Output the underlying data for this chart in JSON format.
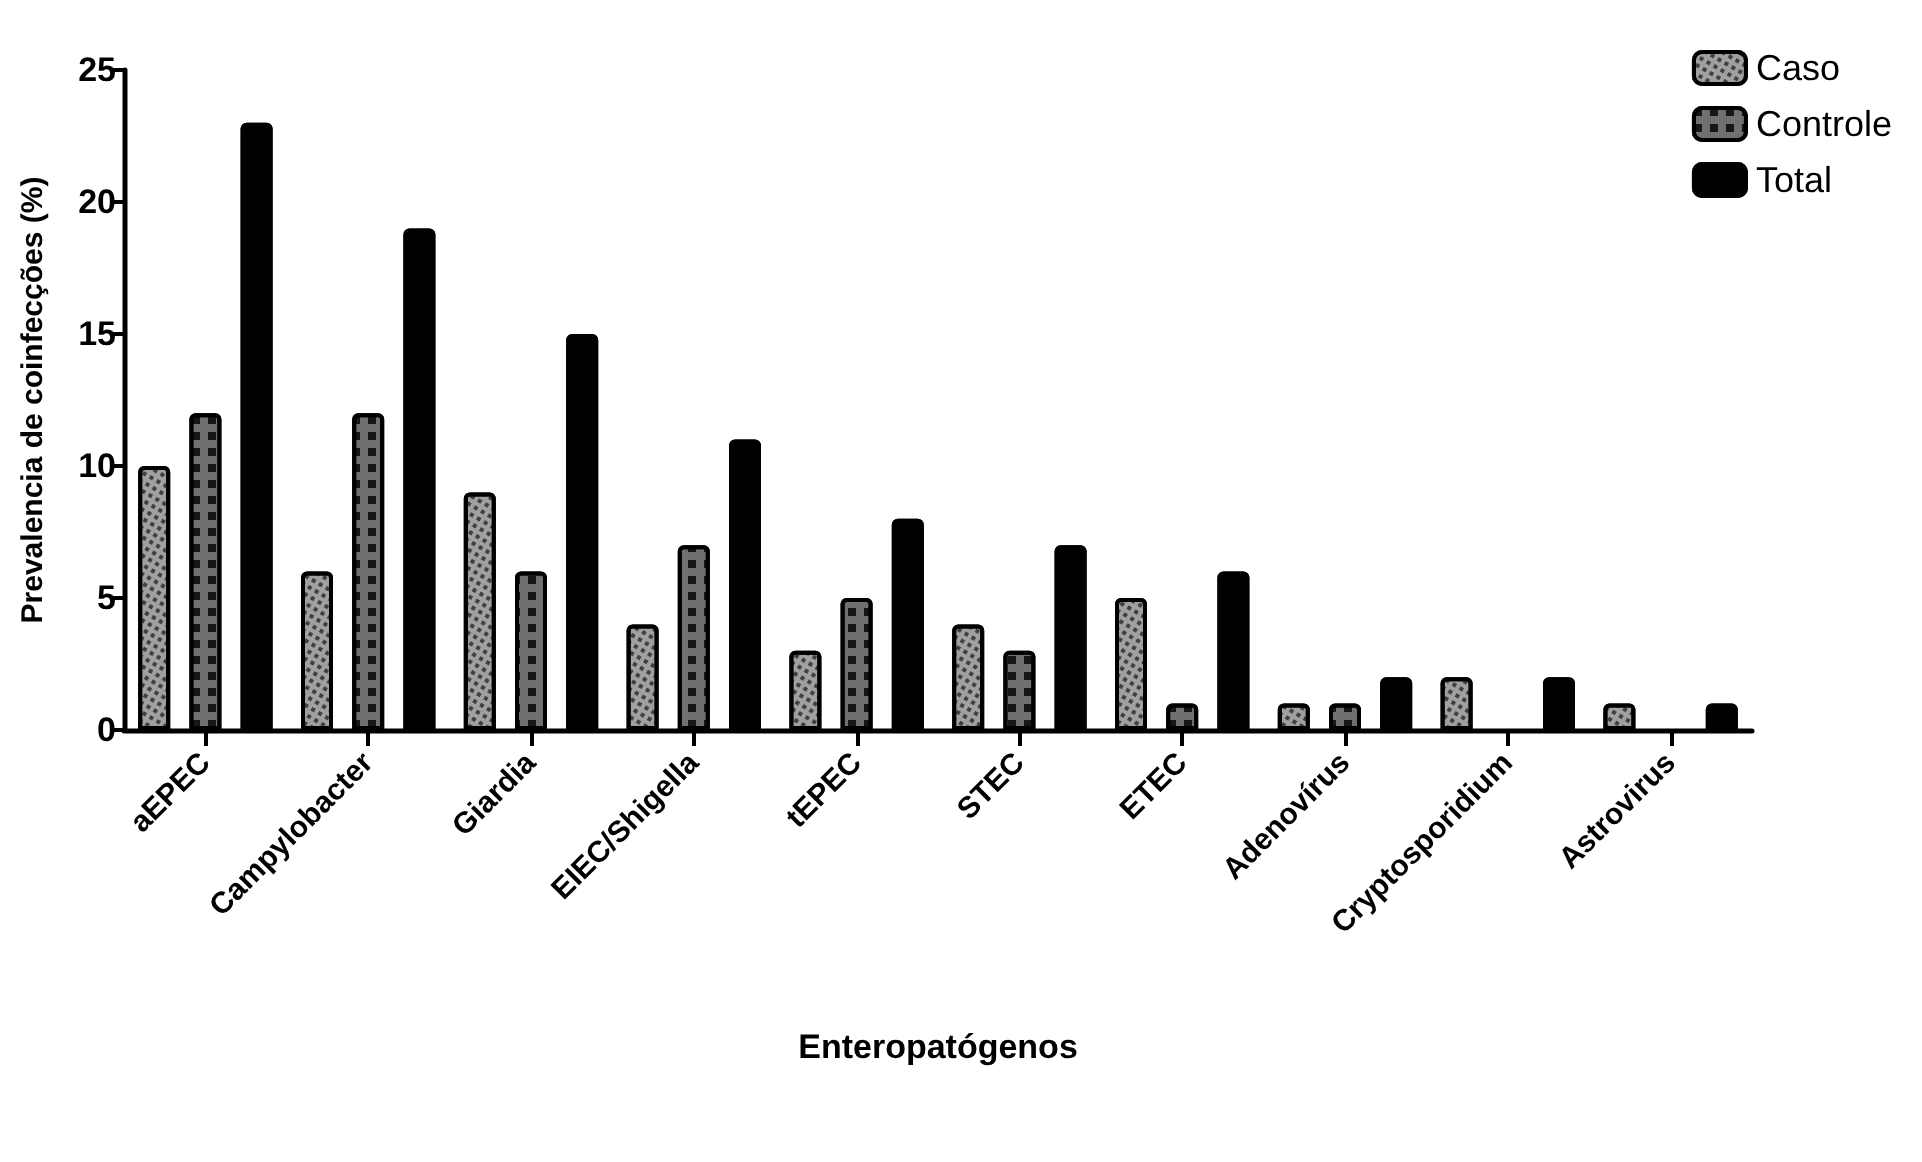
{
  "chart_data": {
    "type": "bar",
    "xlabel": "Enteropatógenos",
    "ylabel": "Prevalencia de coinfecções (%)",
    "categories": [
      "aEPEC",
      "Campylobacter",
      "Giardia",
      "EIEC/Shigella",
      "tEPEC",
      "STEC",
      "ETEC",
      "Adenovírus",
      "Cryptosporidium",
      "Astrovirus"
    ],
    "series": [
      {
        "name": "Caso",
        "color": "#a0a0a0",
        "values": [
          10,
          6,
          9,
          4,
          3,
          4,
          5,
          1,
          2,
          1
        ]
      },
      {
        "name": "Controle",
        "color": "#707070",
        "values": [
          12,
          12,
          6,
          7,
          5,
          3,
          1,
          1,
          0,
          0
        ]
      },
      {
        "name": "Total",
        "color": "#000000",
        "values": [
          23,
          19,
          15,
          11,
          8,
          7,
          6,
          2,
          2,
          1
        ]
      }
    ],
    "ylim": [
      0,
      25
    ],
    "yticks": [
      0,
      5,
      10,
      15,
      20,
      25
    ],
    "grid": false,
    "legend": "top right"
  }
}
